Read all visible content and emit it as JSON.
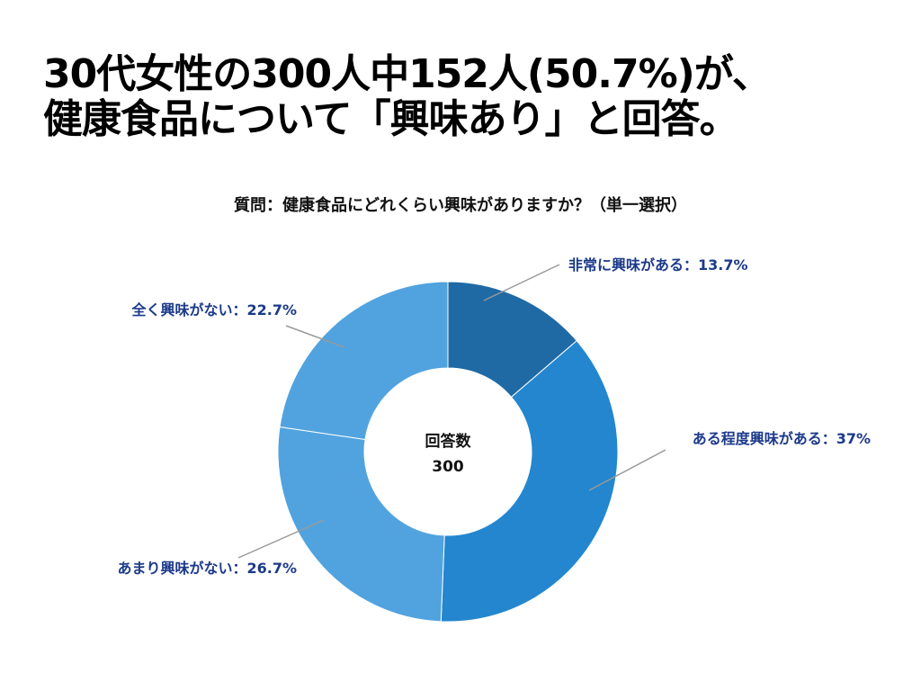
{
  "headline": {
    "line1": "30代女性の300人中152人(50.7%)が、",
    "line2": "健康食品について「興味あり」と回答。"
  },
  "chart_data": {
    "type": "pie",
    "title": "質問：健康食品にどれくらい興味がありますか？（単一選択）",
    "center_label": "回答数",
    "center_value": "300",
    "slices": [
      {
        "label": "非常に興味がある：13.7%",
        "value": 13.7,
        "color": "#1f6aa5"
      },
      {
        "label": "ある程度興味がある：37%",
        "value": 37,
        "color": "#2386cf"
      },
      {
        "label": "あまり興味がない：26.7%",
        "value": 26.7,
        "color": "#51a3df"
      },
      {
        "label": "全く興味がない：22.7%",
        "value": 22.7,
        "color": "#51a3df"
      }
    ],
    "label_color": "#1c3a8a",
    "leader_color": "#999999"
  }
}
